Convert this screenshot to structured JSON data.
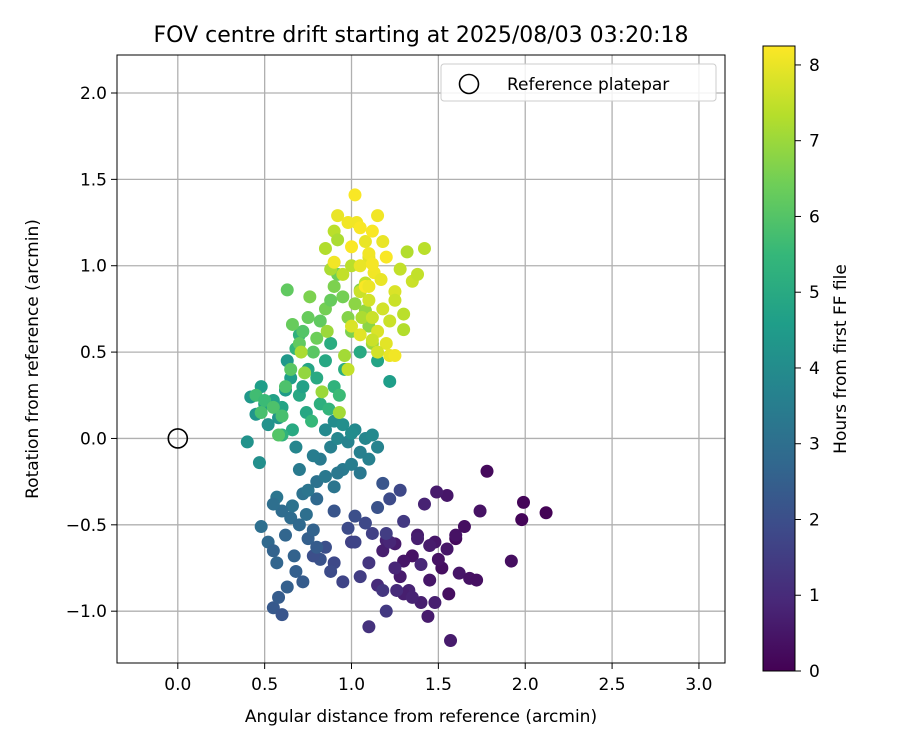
{
  "chart_data": {
    "type": "scatter",
    "title": "FOV centre drift starting at 2025/08/03 03:20:18",
    "xlabel": "Angular distance from reference (arcmin)",
    "ylabel": "Rotation from reference (arcmin)",
    "xlim": [
      -0.35,
      3.15
    ],
    "ylim": [
      -1.3,
      2.22
    ],
    "xticks": [
      0.0,
      0.5,
      1.0,
      1.5,
      2.0,
      2.5,
      3.0
    ],
    "xtick_labels": [
      "0.0",
      "0.5",
      "1.0",
      "1.5",
      "2.0",
      "2.5",
      "3.0"
    ],
    "yticks": [
      -1.0,
      -0.5,
      0.0,
      0.5,
      1.0,
      1.5,
      2.0
    ],
    "ytick_labels": [
      "−1.0",
      "−0.5",
      "0.0",
      "0.5",
      "1.0",
      "1.5",
      "2.0"
    ],
    "grid": true,
    "legend": {
      "placement": "top-right",
      "entries": [
        {
          "label": "Reference platepar",
          "marker": "open-circle",
          "color": "#000000"
        }
      ]
    },
    "reference_point": {
      "x": 0.0,
      "y": 0.0
    },
    "colorbar": {
      "label": "Hours from first FF file",
      "range": [
        0,
        8.25
      ],
      "ticks": [
        0,
        1,
        2,
        3,
        4,
        5,
        6,
        7,
        8
      ],
      "tick_labels": [
        "0",
        "1",
        "2",
        "3",
        "4",
        "5",
        "6",
        "7",
        "8"
      ],
      "colormap": "viridis",
      "colormap_stops": [
        "#440154",
        "#482878",
        "#3e4989",
        "#31688e",
        "#26828e",
        "#1f9e89",
        "#35b779",
        "#6ece58",
        "#b5de2b",
        "#fde725"
      ]
    },
    "series": [
      {
        "x": [
          1.98,
          2.12,
          1.92,
          1.78,
          1.74,
          1.65,
          1.55,
          1.6,
          1.49,
          1.42,
          1.48,
          1.52,
          1.38,
          1.35,
          1.3,
          1.25,
          1.2,
          1.18,
          1.5,
          1.45,
          1.56,
          1.62,
          1.68,
          1.72,
          1.4,
          1.33,
          1.28,
          1.22,
          1.15,
          1.3,
          1.25,
          1.45,
          1.38,
          1.55,
          1.6,
          1.99,
          1.57,
          1.44,
          1.35,
          1.48,
          1.26,
          1.4
        ],
        "y": [
          -0.47,
          -0.43,
          -0.71,
          -0.19,
          -0.42,
          -0.51,
          -0.33,
          -0.58,
          -0.31,
          -0.38,
          -0.6,
          -0.75,
          -0.56,
          -0.68,
          -0.71,
          -0.61,
          -0.59,
          -0.65,
          -0.7,
          -0.82,
          -0.9,
          -0.78,
          -0.81,
          -0.82,
          -0.95,
          -0.88,
          -0.8,
          -0.6,
          -0.85,
          -0.9,
          -0.75,
          -0.62,
          -0.58,
          -0.64,
          -0.56,
          -0.37,
          -1.17,
          -1.03,
          -0.92,
          -0.95,
          -0.88,
          -0.73
        ],
        "hours": [
          0.1,
          0.05,
          0.3,
          0.2,
          0.4,
          0.3,
          0.5,
          0.2,
          0.6,
          0.8,
          0.5,
          0.3,
          0.6,
          0.4,
          0.5,
          0.6,
          0.8,
          0.7,
          0.4,
          0.5,
          0.3,
          0.5,
          0.4,
          0.35,
          0.7,
          0.8,
          0.6,
          0.9,
          1.0,
          0.7,
          0.9,
          0.6,
          0.7,
          0.5,
          0.4,
          0.1,
          0.6,
          0.6,
          0.8,
          0.7,
          1.0,
          0.9
        ]
      },
      {
        "x": [
          1.1,
          1.2,
          1.18,
          1.05,
          0.95,
          0.9,
          1.0,
          1.1,
          1.3,
          0.98,
          0.85,
          0.88,
          0.82,
          0.78,
          1.02,
          1.12,
          1.2,
          0.9,
          1.08,
          1.02,
          1.15,
          1.22,
          1.28,
          1.18
        ],
        "y": [
          -1.09,
          -1.0,
          -0.88,
          -0.8,
          -0.83,
          -0.72,
          -0.6,
          -0.72,
          -0.48,
          -0.52,
          -0.63,
          -0.77,
          -0.7,
          -0.68,
          -0.6,
          -0.55,
          -0.55,
          -0.42,
          -0.49,
          -0.45,
          -0.4,
          -0.35,
          -0.3,
          -0.26
        ],
        "hours": [
          1.2,
          1.4,
          1.3,
          1.5,
          1.7,
          1.8,
          1.6,
          1.3,
          1.4,
          1.9,
          2.0,
          1.9,
          2.1,
          2.0,
          1.7,
          1.6,
          1.5,
          2.2,
          1.8,
          2.0,
          2.1,
          1.9,
          1.8,
          2.2
        ]
      },
      {
        "x": [
          0.55,
          0.58,
          0.6,
          0.63,
          0.67,
          0.68,
          0.72,
          0.57,
          0.52,
          0.48,
          0.55,
          0.62,
          0.65,
          0.7,
          0.75,
          0.78,
          0.8,
          0.74,
          0.66,
          0.6,
          0.57,
          0.55,
          0.72,
          0.8
        ],
        "y": [
          -0.98,
          -0.92,
          -1.02,
          -0.86,
          -0.68,
          -0.77,
          -0.83,
          -0.72,
          -0.6,
          -0.51,
          -0.65,
          -0.56,
          -0.46,
          -0.5,
          -0.58,
          -0.53,
          -0.63,
          -0.44,
          -0.39,
          -0.42,
          -0.34,
          -0.38,
          -0.32,
          -0.35
        ],
        "hours": [
          2.3,
          2.4,
          2.2,
          2.5,
          2.6,
          2.5,
          2.4,
          2.7,
          2.8,
          3.0,
          2.6,
          2.7,
          2.9,
          2.8,
          2.5,
          2.6,
          2.4,
          3.0,
          3.1,
          2.9,
          3.2,
          3.0,
          3.1,
          2.8
        ]
      },
      {
        "x": [
          0.75,
          0.8,
          0.85,
          0.9,
          0.95,
          1.0,
          1.05,
          1.1,
          1.15,
          0.82,
          0.88,
          0.92,
          0.98,
          1.02,
          1.08,
          1.12,
          0.78,
          0.85,
          0.9,
          0.95,
          1.05,
          0.7,
          0.68,
          0.92,
          1.0
        ],
        "y": [
          -0.3,
          -0.25,
          -0.22,
          -0.28,
          -0.18,
          -0.15,
          -0.2,
          -0.12,
          -0.05,
          -0.12,
          -0.05,
          0.0,
          -0.02,
          0.05,
          0.0,
          0.02,
          -0.1,
          0.05,
          0.1,
          0.08,
          -0.08,
          -0.18,
          -0.05,
          -0.2,
          0.03
        ],
        "hours": [
          3.2,
          3.1,
          3.3,
          3.2,
          3.4,
          3.5,
          3.3,
          3.6,
          3.7,
          3.4,
          3.6,
          3.8,
          3.7,
          3.9,
          3.8,
          3.9,
          3.5,
          3.9,
          4.0,
          4.1,
          3.6,
          3.4,
          3.8,
          3.3,
          4.0
        ]
      },
      {
        "x": [
          0.4,
          0.45,
          0.5,
          0.42,
          0.48,
          0.55,
          0.6,
          0.62,
          0.65,
          0.7,
          0.72,
          0.75,
          0.8,
          0.85,
          0.88,
          0.63,
          0.58,
          0.52,
          0.47,
          0.66,
          0.74,
          0.82,
          0.9,
          0.96,
          1.05,
          1.15,
          1.22,
          0.68,
          0.7,
          0.6,
          0.77,
          0.87,
          0.93
        ],
        "y": [
          -0.02,
          0.14,
          0.2,
          0.24,
          0.3,
          0.22,
          0.18,
          0.28,
          0.35,
          0.25,
          0.3,
          0.4,
          0.35,
          0.45,
          0.55,
          0.45,
          0.12,
          0.08,
          -0.14,
          0.05,
          0.15,
          0.2,
          0.3,
          0.4,
          0.5,
          0.45,
          0.33,
          0.52,
          0.6,
          0.02,
          0.1,
          0.17,
          0.25
        ],
        "hours": [
          4.2,
          4.3,
          4.5,
          4.4,
          4.6,
          4.7,
          4.8,
          4.5,
          4.6,
          4.9,
          4.7,
          4.8,
          5.0,
          4.9,
          5.1,
          4.4,
          4.3,
          4.2,
          4.1,
          5.0,
          4.9,
          5.2,
          5.3,
          5.1,
          5.0,
          4.8,
          4.6,
          5.4,
          5.2,
          5.3,
          5.5,
          5.4,
          5.6
        ]
      },
      {
        "x": [
          0.45,
          0.48,
          0.5,
          0.55,
          0.58,
          0.6,
          0.62,
          0.65,
          0.7,
          0.72,
          0.75,
          0.78,
          0.8,
          0.82,
          0.85,
          0.88,
          0.9,
          0.92,
          0.95,
          0.98,
          1.0,
          1.02,
          1.05,
          1.08,
          1.1,
          1.12,
          0.66,
          0.76,
          0.86,
          0.96,
          1.06,
          0.73,
          0.83,
          0.93,
          0.63,
          0.71
        ],
        "y": [
          0.25,
          0.15,
          0.22,
          0.18,
          0.02,
          0.13,
          0.3,
          0.4,
          0.55,
          0.62,
          0.7,
          0.5,
          0.58,
          0.68,
          0.75,
          0.8,
          0.88,
          0.95,
          0.82,
          0.7,
          0.62,
          0.78,
          0.86,
          0.74,
          0.65,
          0.55,
          0.66,
          0.82,
          0.62,
          0.48,
          0.7,
          0.38,
          0.27,
          0.15,
          0.86,
          0.5
        ],
        "hours": [
          5.7,
          5.8,
          5.6,
          5.9,
          6.0,
          5.8,
          5.9,
          6.1,
          6.2,
          6.0,
          6.3,
          6.1,
          6.4,
          6.2,
          6.5,
          6.3,
          6.6,
          6.4,
          6.5,
          6.7,
          6.6,
          6.8,
          6.7,
          6.9,
          6.8,
          7.0,
          6.3,
          6.6,
          7.0,
          7.1,
          7.2,
          6.9,
          7.0,
          7.1,
          6.2,
          7.2
        ]
      },
      {
        "x": [
          0.85,
          0.9,
          0.92,
          0.95,
          1.0,
          1.05,
          1.08,
          1.1,
          1.12,
          1.15,
          1.18,
          1.2,
          1.22,
          1.25,
          1.28,
          1.3,
          1.32,
          1.35,
          1.38,
          1.42,
          1.0,
          1.05,
          1.15,
          1.25,
          1.3,
          0.88,
          0.98,
          1.12,
          1.22,
          1.1
        ],
        "y": [
          1.1,
          1.2,
          1.15,
          0.95,
          1.0,
          0.85,
          0.9,
          0.8,
          0.7,
          0.62,
          0.75,
          0.55,
          0.68,
          0.85,
          0.98,
          0.72,
          1.08,
          0.91,
          0.95,
          1.1,
          0.65,
          0.6,
          0.5,
          0.8,
          0.63,
          0.98,
          0.4,
          0.57,
          0.48,
          1.05
        ],
        "hours": [
          7.3,
          7.4,
          7.2,
          7.5,
          7.4,
          7.6,
          7.5,
          7.7,
          7.6,
          7.8,
          7.7,
          7.9,
          7.6,
          7.8,
          7.5,
          7.4,
          7.3,
          7.6,
          7.5,
          7.4,
          7.8,
          7.9,
          7.7,
          7.6,
          7.3,
          7.2,
          7.5,
          7.6,
          8.0,
          7.9
        ]
      },
      {
        "x": [
          0.92,
          0.98,
          1.02,
          1.03,
          1.05,
          1.08,
          1.1,
          1.12,
          1.15,
          1.18,
          1.2,
          1.05,
          1.13,
          1.08,
          1.25,
          1.17,
          0.9,
          1.0,
          1.12,
          1.1
        ],
        "y": [
          1.29,
          1.25,
          1.41,
          1.25,
          1.22,
          1.14,
          1.07,
          1.2,
          1.29,
          1.14,
          1.05,
          1.0,
          0.96,
          0.88,
          0.48,
          0.92,
          1.02,
          1.11,
          1.01,
          0.88
        ],
        "hours": [
          8.0,
          8.1,
          8.2,
          8.1,
          8.2,
          8.0,
          8.1,
          8.2,
          8.1,
          8.0,
          8.2,
          8.0,
          8.1,
          8.2,
          8.1,
          8.0,
          8.1,
          8.2,
          8.15,
          8.05
        ]
      }
    ]
  }
}
